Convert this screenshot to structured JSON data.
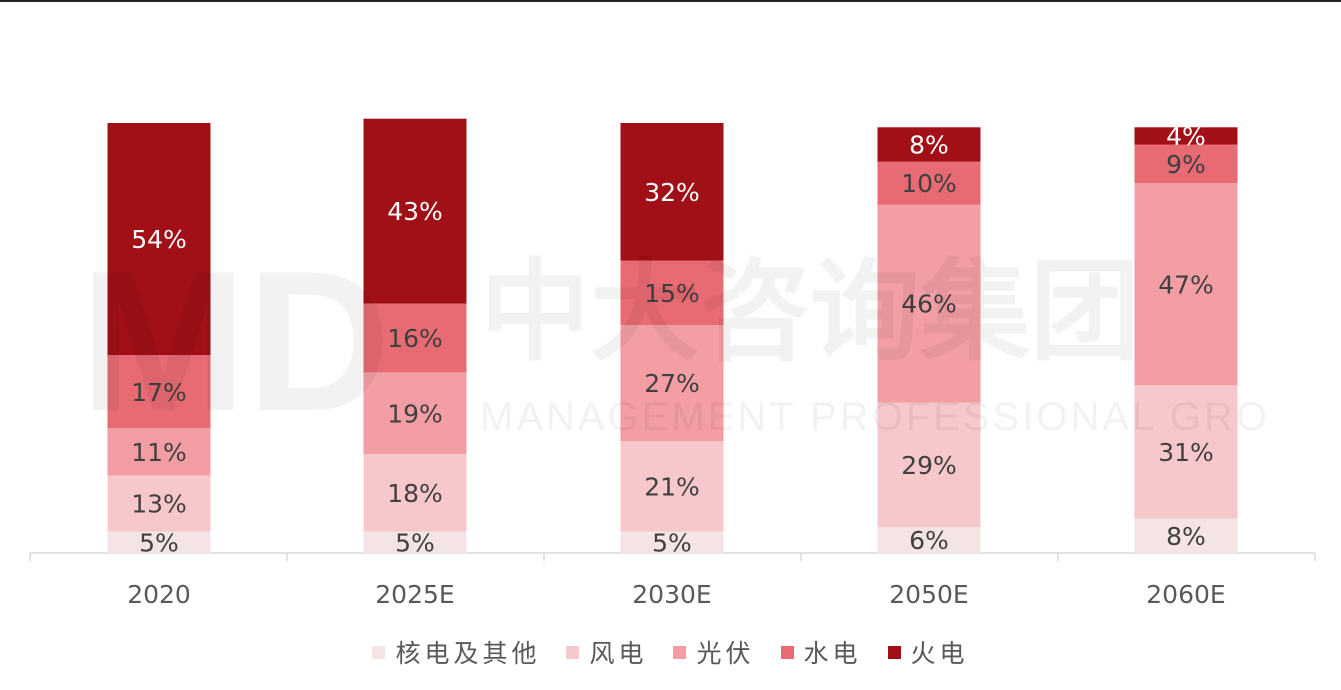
{
  "chart_data": {
    "type": "bar",
    "stacked": true,
    "categories": [
      "2020",
      "2025E",
      "2030E",
      "2050E",
      "2060E"
    ],
    "series": [
      {
        "name": "核电及其他",
        "color": "#f5e4e4",
        "values": [
          5,
          5,
          5,
          6,
          8
        ],
        "labels": [
          "5%",
          "5%",
          "5%",
          "6%",
          "8%"
        ]
      },
      {
        "name": "风电",
        "color": "#f6c8cb",
        "values": [
          13,
          18,
          21,
          29,
          31
        ],
        "labels": [
          "13%",
          "18%",
          "21%",
          "29%",
          "31%"
        ]
      },
      {
        "name": "光伏",
        "color": "#f29ea4",
        "values": [
          11,
          19,
          27,
          46,
          47
        ],
        "labels": [
          "11%",
          "19%",
          "27%",
          "46%",
          "47%"
        ]
      },
      {
        "name": "水电",
        "color": "#e86a72",
        "values": [
          17,
          16,
          15,
          10,
          9
        ],
        "labels": [
          "17%",
          "16%",
          "15%",
          "10%",
          "9%"
        ]
      },
      {
        "name": "火电",
        "color": "#a10f17",
        "values": [
          54,
          43,
          32,
          8,
          4
        ],
        "labels": [
          "54%",
          "43%",
          "32%",
          "8%",
          "4%"
        ]
      }
    ],
    "legend_position": "bottom",
    "grid": false
  },
  "watermark": {
    "logo": "MD",
    "title": "中大咨询集团",
    "subtitle": "MANAGEMENT PROFESSIONAL GROUP"
  }
}
